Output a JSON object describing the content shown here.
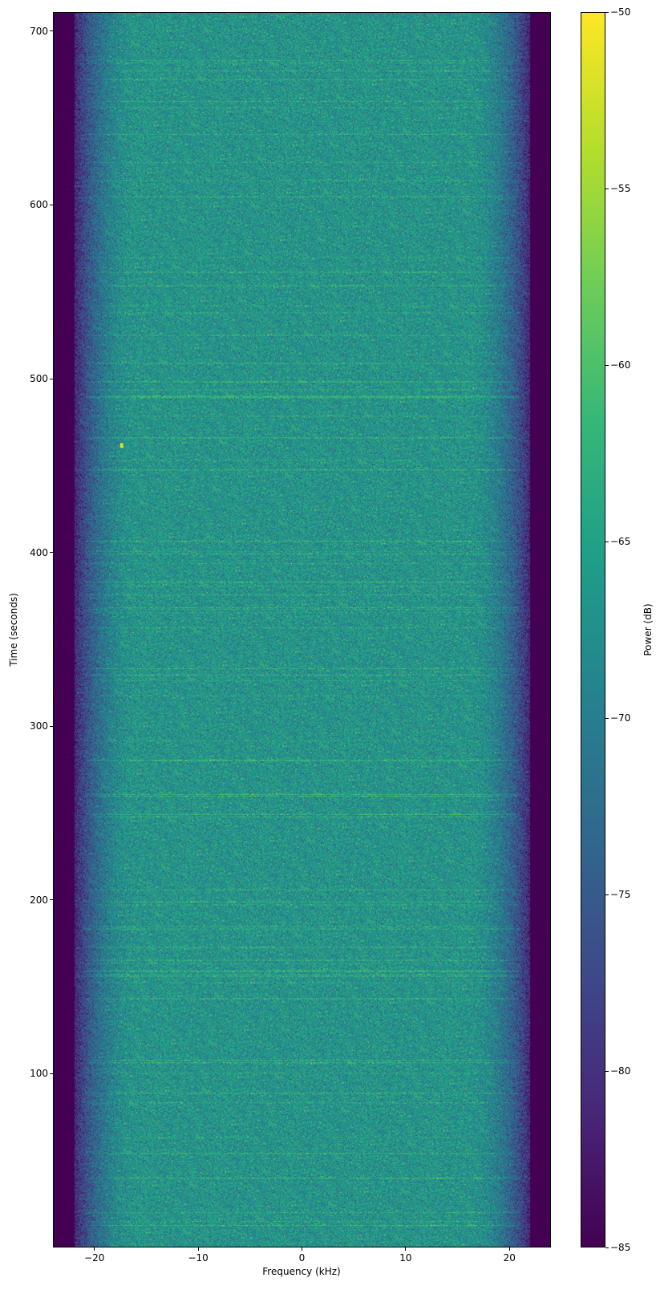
{
  "chart_data": {
    "type": "heatmap",
    "title": "",
    "xlabel": "Frequency (kHz)",
    "ylabel": "Time (seconds)",
    "xlim": [
      -24,
      24
    ],
    "ylim": [
      0,
      711
    ],
    "xticks": [
      -20,
      -10,
      0,
      10,
      20
    ],
    "xtick_labels": [
      "−20",
      "−10",
      "0",
      "10",
      "20"
    ],
    "yticks": [
      100,
      200,
      300,
      400,
      500,
      600,
      700
    ],
    "ytick_labels": [
      "100",
      "200",
      "300",
      "400",
      "500",
      "600",
      "700"
    ],
    "colormap": "viridis",
    "colorbar": {
      "label": "Power (dB)",
      "clim": [
        -85,
        -50
      ],
      "ticks": [
        -50,
        -55,
        -60,
        -65,
        -70,
        -75,
        -80,
        -85
      ],
      "tick_labels": [
        "−50",
        "−55",
        "−60",
        "−65",
        "−70",
        "−75",
        "−80",
        "−85"
      ]
    },
    "description_of_values": {
      "passband_kHz": [
        -21,
        21
      ],
      "passband_level_dB": -67,
      "out_of_band_level_dB": -85,
      "transient_at": {
        "frequency_kHz": -17.5,
        "time_s": 462,
        "level_dB": -52
      }
    },
    "grid": false
  }
}
